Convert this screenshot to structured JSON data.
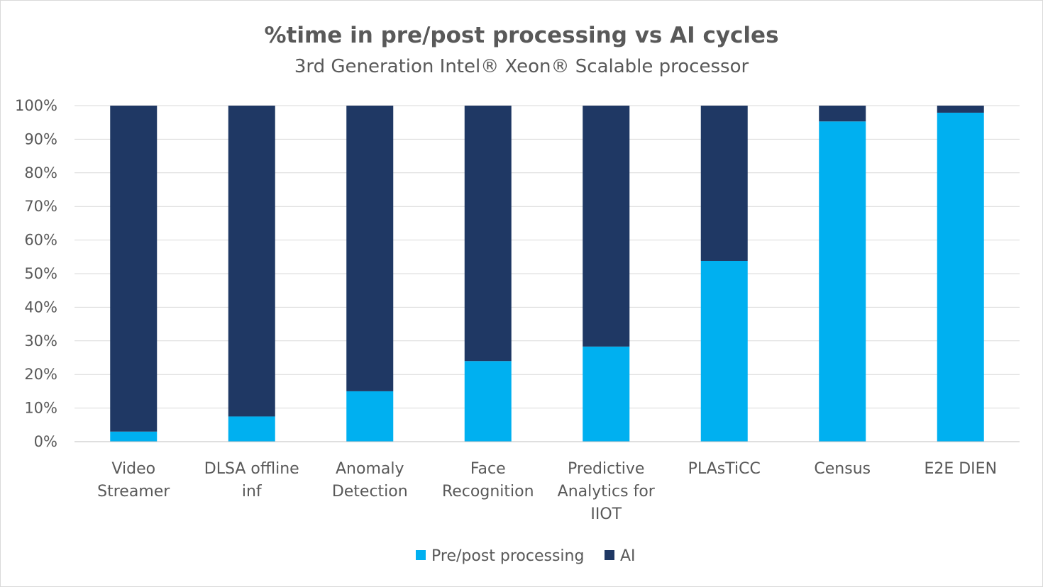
{
  "chart_data": {
    "type": "bar",
    "stacked": true,
    "title": "%time in pre/post processing vs AI cycles",
    "subtitle": "3rd Generation Intel® Xeon® Scalable processor",
    "categories": [
      [
        "Video",
        "Streamer"
      ],
      [
        "DLSA offline",
        "inf"
      ],
      [
        "Anomaly",
        "Detection"
      ],
      [
        "Face",
        "Recognition"
      ],
      [
        "Predictive",
        "Analytics for",
        "IIOT"
      ],
      [
        "PLAsTiCC"
      ],
      [
        "Census"
      ],
      [
        "E2E DIEN"
      ]
    ],
    "series": [
      {
        "name": "Pre/post processing",
        "color": "#00b0f0",
        "values": [
          3,
          7.5,
          15,
          24,
          28.3,
          53.8,
          95.3,
          97.9
        ]
      },
      {
        "name": "AI",
        "color": "#1f3864",
        "values": [
          97,
          92.5,
          85,
          76,
          71.7,
          46.2,
          4.7,
          2.1
        ]
      }
    ],
    "ylim": [
      0,
      100
    ],
    "yticks": [
      "0%",
      "10%",
      "20%",
      "30%",
      "40%",
      "50%",
      "60%",
      "70%",
      "80%",
      "90%",
      "100%"
    ],
    "grid": true,
    "legend_position": "bottom"
  }
}
